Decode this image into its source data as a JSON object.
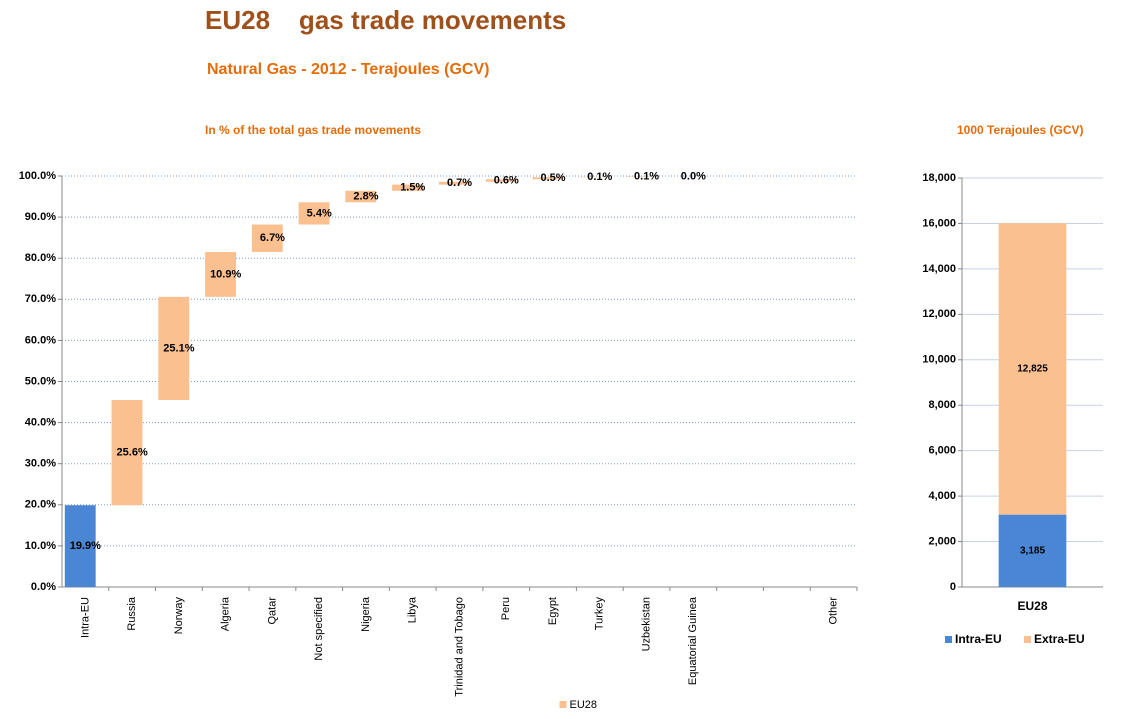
{
  "title": "EU28    gas trade movements",
  "subtitle": "Natural Gas - 2012 - Terajoules (GCV)",
  "chart_data": [
    {
      "type": "waterfall",
      "title": "In % of the total gas trade movements",
      "categories": [
        "Intra-EU",
        "Russia",
        "Norway",
        "Algeria",
        "Qatar",
        "Not specified",
        "Nigeria",
        "Libya",
        "Trinidad and Tobago",
        "Peru",
        "Egypt",
        "Turkey",
        "Uzbekistan",
        "Equatorial Guinea",
        null,
        null,
        "Other"
      ],
      "series": [
        {
          "name": "EU28",
          "color": "#fac090",
          "values": [
            19.9,
            25.6,
            25.1,
            10.9,
            6.7,
            5.4,
            2.8,
            1.5,
            0.7,
            0.6,
            0.5,
            0.1,
            0.1,
            0.0,
            null,
            null,
            null
          ],
          "value_labels": [
            "19.9%",
            "25.6%",
            "25.1%",
            "10.9%",
            "6.7%",
            "5.4%",
            "2.8%",
            "1.5%",
            "0.7%",
            "0.6%",
            "0.5%",
            "0.1%",
            "0.1%",
            "0.0%",
            null,
            null,
            null
          ],
          "first_color": "#4a86d4"
        }
      ],
      "ylim": [
        0,
        100
      ],
      "yticks": [
        {
          "value": 0,
          "label": "0.0%"
        },
        {
          "value": 10,
          "label": "10.0%"
        },
        {
          "value": 20,
          "label": "20.0%"
        },
        {
          "value": 30,
          "label": "30.0%"
        },
        {
          "value": 40,
          "label": "40.0%"
        },
        {
          "value": 50,
          "label": "50.0%"
        },
        {
          "value": 60,
          "label": "60.0%"
        },
        {
          "value": 70,
          "label": "70.0%"
        },
        {
          "value": 80,
          "label": "80.0%"
        },
        {
          "value": 90,
          "label": "90.0%"
        },
        {
          "value": 100,
          "label": "100.0%"
        }
      ],
      "grid": true,
      "legend": "bottom"
    },
    {
      "type": "stacked_bar",
      "title": "1000 Terajoules (GCV)",
      "categories": [
        "EU28"
      ],
      "series": [
        {
          "name": "Intra-EU",
          "color": "#4a86d4",
          "values": [
            3185
          ],
          "value_labels": [
            "3,185"
          ]
        },
        {
          "name": "Extra-EU",
          "color": "#fac090",
          "values": [
            12825
          ],
          "value_labels": [
            "12,825"
          ]
        }
      ],
      "ylim": [
        0,
        18000
      ],
      "yticks": [
        0,
        {
          "value": 2000,
          "label": "2,000"
        },
        {
          "value": 4000,
          "label": "4,000"
        },
        {
          "value": 6000,
          "label": "6,000"
        },
        {
          "value": 8000,
          "label": "8,000"
        },
        {
          "value": 10000,
          "label": "10,000"
        },
        {
          "value": 12000,
          "label": "12,000"
        },
        {
          "value": 14000,
          "label": "14,000"
        },
        {
          "value": 16000,
          "label": "16,000"
        },
        {
          "value": 18000,
          "label": "18,000"
        }
      ],
      "grid": true,
      "legend": "bottom"
    }
  ]
}
